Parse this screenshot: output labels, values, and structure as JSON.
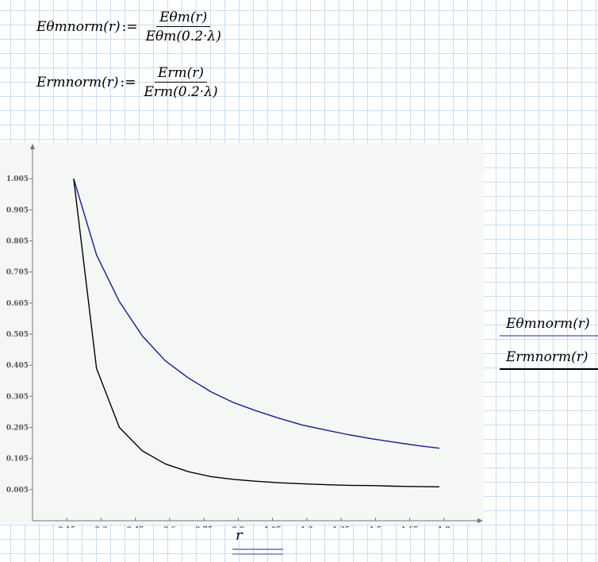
{
  "equations": [
    {
      "name": "Eθmnorm(r)",
      "assign": ":=",
      "numerator": "Eθm(r)",
      "denominator": "Eθm(0.2·λ)"
    },
    {
      "name": "Ermnorm(r)",
      "assign": ":=",
      "numerator": "Erm(r)",
      "denominator": "Erm(0.2·λ)"
    }
  ],
  "legend": [
    {
      "label": "Eθmnorm(r)",
      "color": "#1a1a8c"
    },
    {
      "label": "Ermnorm(r)",
      "color": "#000000"
    }
  ],
  "axis": {
    "x_variable": "r"
  },
  "chart_data": {
    "type": "line",
    "xlabel": "r",
    "ylabel": "",
    "xlim": [
      0.0,
      1.95
    ],
    "ylim": [
      -0.095,
      1.105
    ],
    "x_ticks": [
      "0.15",
      "0.3",
      "0.45",
      "0.6",
      "0.75",
      "0.9",
      "1.05",
      "1.2",
      "1.35",
      "1.5",
      "1.65",
      "1.8"
    ],
    "y_ticks": [
      "0.005",
      "0.105",
      "0.205",
      "0.305",
      "0.405",
      "0.505",
      "0.605",
      "0.705",
      "0.805",
      "0.905",
      "1.005"
    ],
    "series": [
      {
        "name": "Eθmnorm(r)",
        "color": "#1a1a8c",
        "x": [
          0.18,
          0.28,
          0.38,
          0.48,
          0.58,
          0.68,
          0.78,
          0.88,
          0.98,
          1.08,
          1.18,
          1.28,
          1.38,
          1.48,
          1.58,
          1.68,
          1.78
        ],
        "y": [
          1.005,
          0.76,
          0.61,
          0.5,
          0.42,
          0.365,
          0.32,
          0.285,
          0.258,
          0.234,
          0.213,
          0.197,
          0.182,
          0.169,
          0.158,
          0.147,
          0.138
        ]
      },
      {
        "name": "Ermnorm(r)",
        "color": "#000000",
        "x": [
          0.18,
          0.28,
          0.38,
          0.48,
          0.58,
          0.68,
          0.78,
          0.88,
          0.98,
          1.08,
          1.18,
          1.28,
          1.38,
          1.48,
          1.58,
          1.68,
          1.78
        ],
        "y": [
          1.005,
          0.395,
          0.205,
          0.13,
          0.088,
          0.063,
          0.047,
          0.038,
          0.032,
          0.027,
          0.024,
          0.021,
          0.019,
          0.018,
          0.016,
          0.015,
          0.014
        ]
      }
    ]
  }
}
